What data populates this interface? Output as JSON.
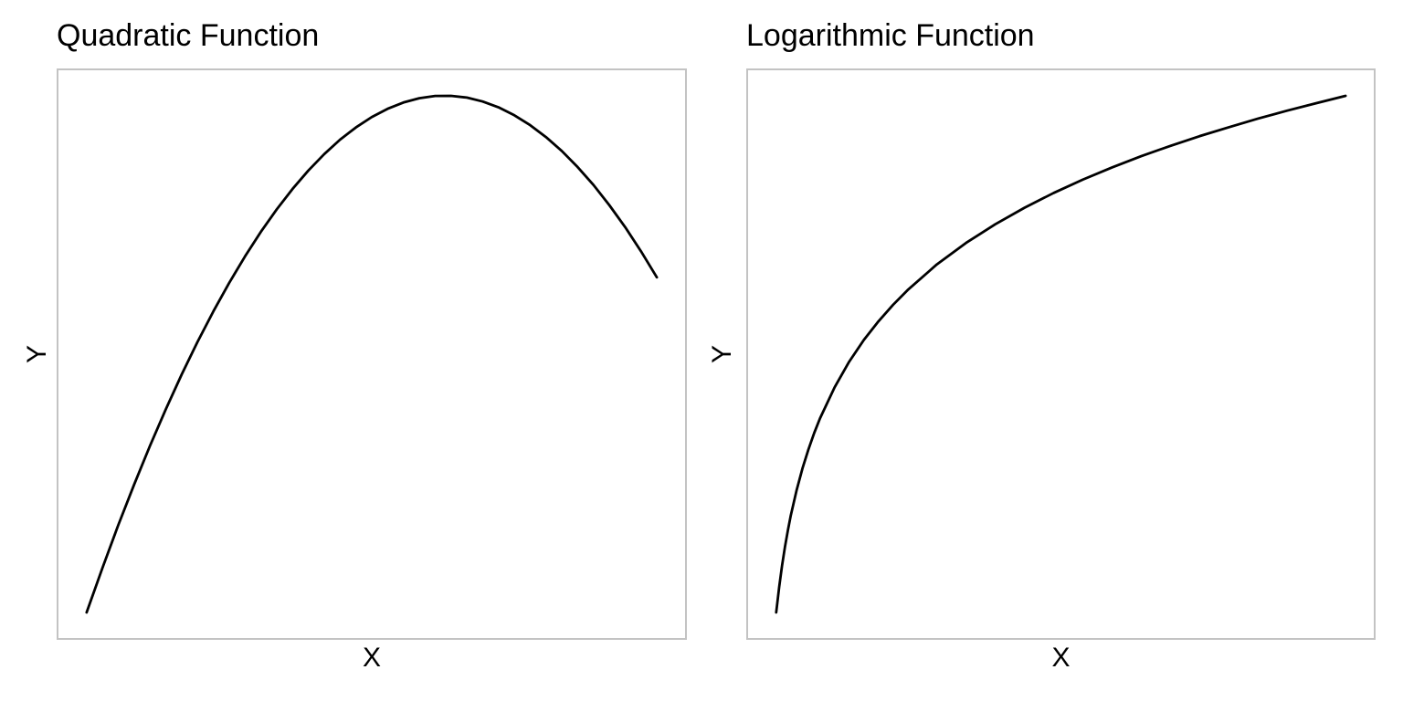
{
  "page": {
    "background_color": "#ffffff",
    "text_color": "#000000"
  },
  "chart_data": [
    {
      "type": "line",
      "title": "Quadratic Function",
      "xlabel": "X",
      "ylabel": "Y",
      "grid": false,
      "tick_labels": "none",
      "tick_marks": "none",
      "legend": "none",
      "panel_border_color": "#c3c3c3",
      "line_color": "#000000",
      "line_width": 2.8,
      "margin_frac": 0.045,
      "formula": "y = -(x - 6.65)^2",
      "x": [
        1,
        1.25,
        1.5,
        1.75,
        2,
        2.25,
        2.5,
        2.75,
        3,
        3.25,
        3.5,
        3.75,
        4,
        4.25,
        4.5,
        4.75,
        5,
        5.25,
        5.5,
        5.75,
        6,
        6.25,
        6.5,
        6.75,
        7,
        7.25,
        7.5,
        7.75,
        8,
        8.25,
        8.5,
        8.75,
        9,
        9.25,
        9.5,
        9.75,
        10
      ],
      "y": [
        -31.92,
        -29.16,
        -26.52,
        -24.01,
        -21.62,
        -19.36,
        -17.22,
        -15.21,
        -13.32,
        -11.56,
        -9.92,
        -8.41,
        -7.02,
        -5.76,
        -4.62,
        -3.61,
        -2.72,
        -1.96,
        -1.32,
        -0.81,
        -0.42,
        -0.16,
        -0.02,
        -0.01,
        -0.12,
        -0.36,
        -0.72,
        -1.21,
        -1.82,
        -2.56,
        -3.42,
        -4.41,
        -5.52,
        -6.76,
        -8.12,
        -9.61,
        -11.22
      ]
    },
    {
      "type": "line",
      "title": "Logarithmic Function",
      "xlabel": "X",
      "ylabel": "Y",
      "grid": false,
      "tick_labels": "none",
      "tick_marks": "none",
      "legend": "none",
      "panel_border_color": "#c3c3c3",
      "line_color": "#000000",
      "line_width": 2.8,
      "margin_frac": 0.045,
      "formula": "y = ln(x)",
      "x": [
        0.25,
        0.3,
        0.35,
        0.4,
        0.45,
        0.5,
        0.6,
        0.7,
        0.8,
        0.9,
        1,
        1.25,
        1.5,
        1.75,
        2,
        2.25,
        2.5,
        3,
        3.5,
        4,
        4.5,
        5,
        5.5,
        6,
        6.5,
        7,
        7.5,
        8,
        8.5,
        9,
        9.5,
        10
      ],
      "y": [
        -1.386,
        -1.204,
        -1.05,
        -0.916,
        -0.799,
        -0.693,
        -0.511,
        -0.357,
        -0.223,
        -0.105,
        0,
        0.223,
        0.405,
        0.56,
        0.693,
        0.811,
        0.916,
        1.099,
        1.253,
        1.386,
        1.504,
        1.609,
        1.705,
        1.792,
        1.872,
        1.946,
        2.015,
        2.079,
        2.14,
        2.197,
        2.251,
        2.303
      ]
    }
  ]
}
